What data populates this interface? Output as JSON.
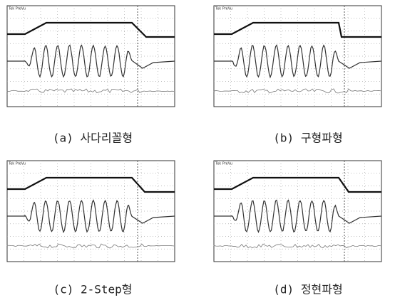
{
  "panels": [
    {
      "header": "Tek PreVu",
      "caption": "(a) 사다리꼴형"
    },
    {
      "header": "Tek PreVu",
      "caption": "(b) 구형파형"
    },
    {
      "header": "Tek PreVu",
      "caption": "(c) 2-Step형"
    },
    {
      "header": "Tek PreVu",
      "caption": "(d) 정현파형"
    }
  ]
}
